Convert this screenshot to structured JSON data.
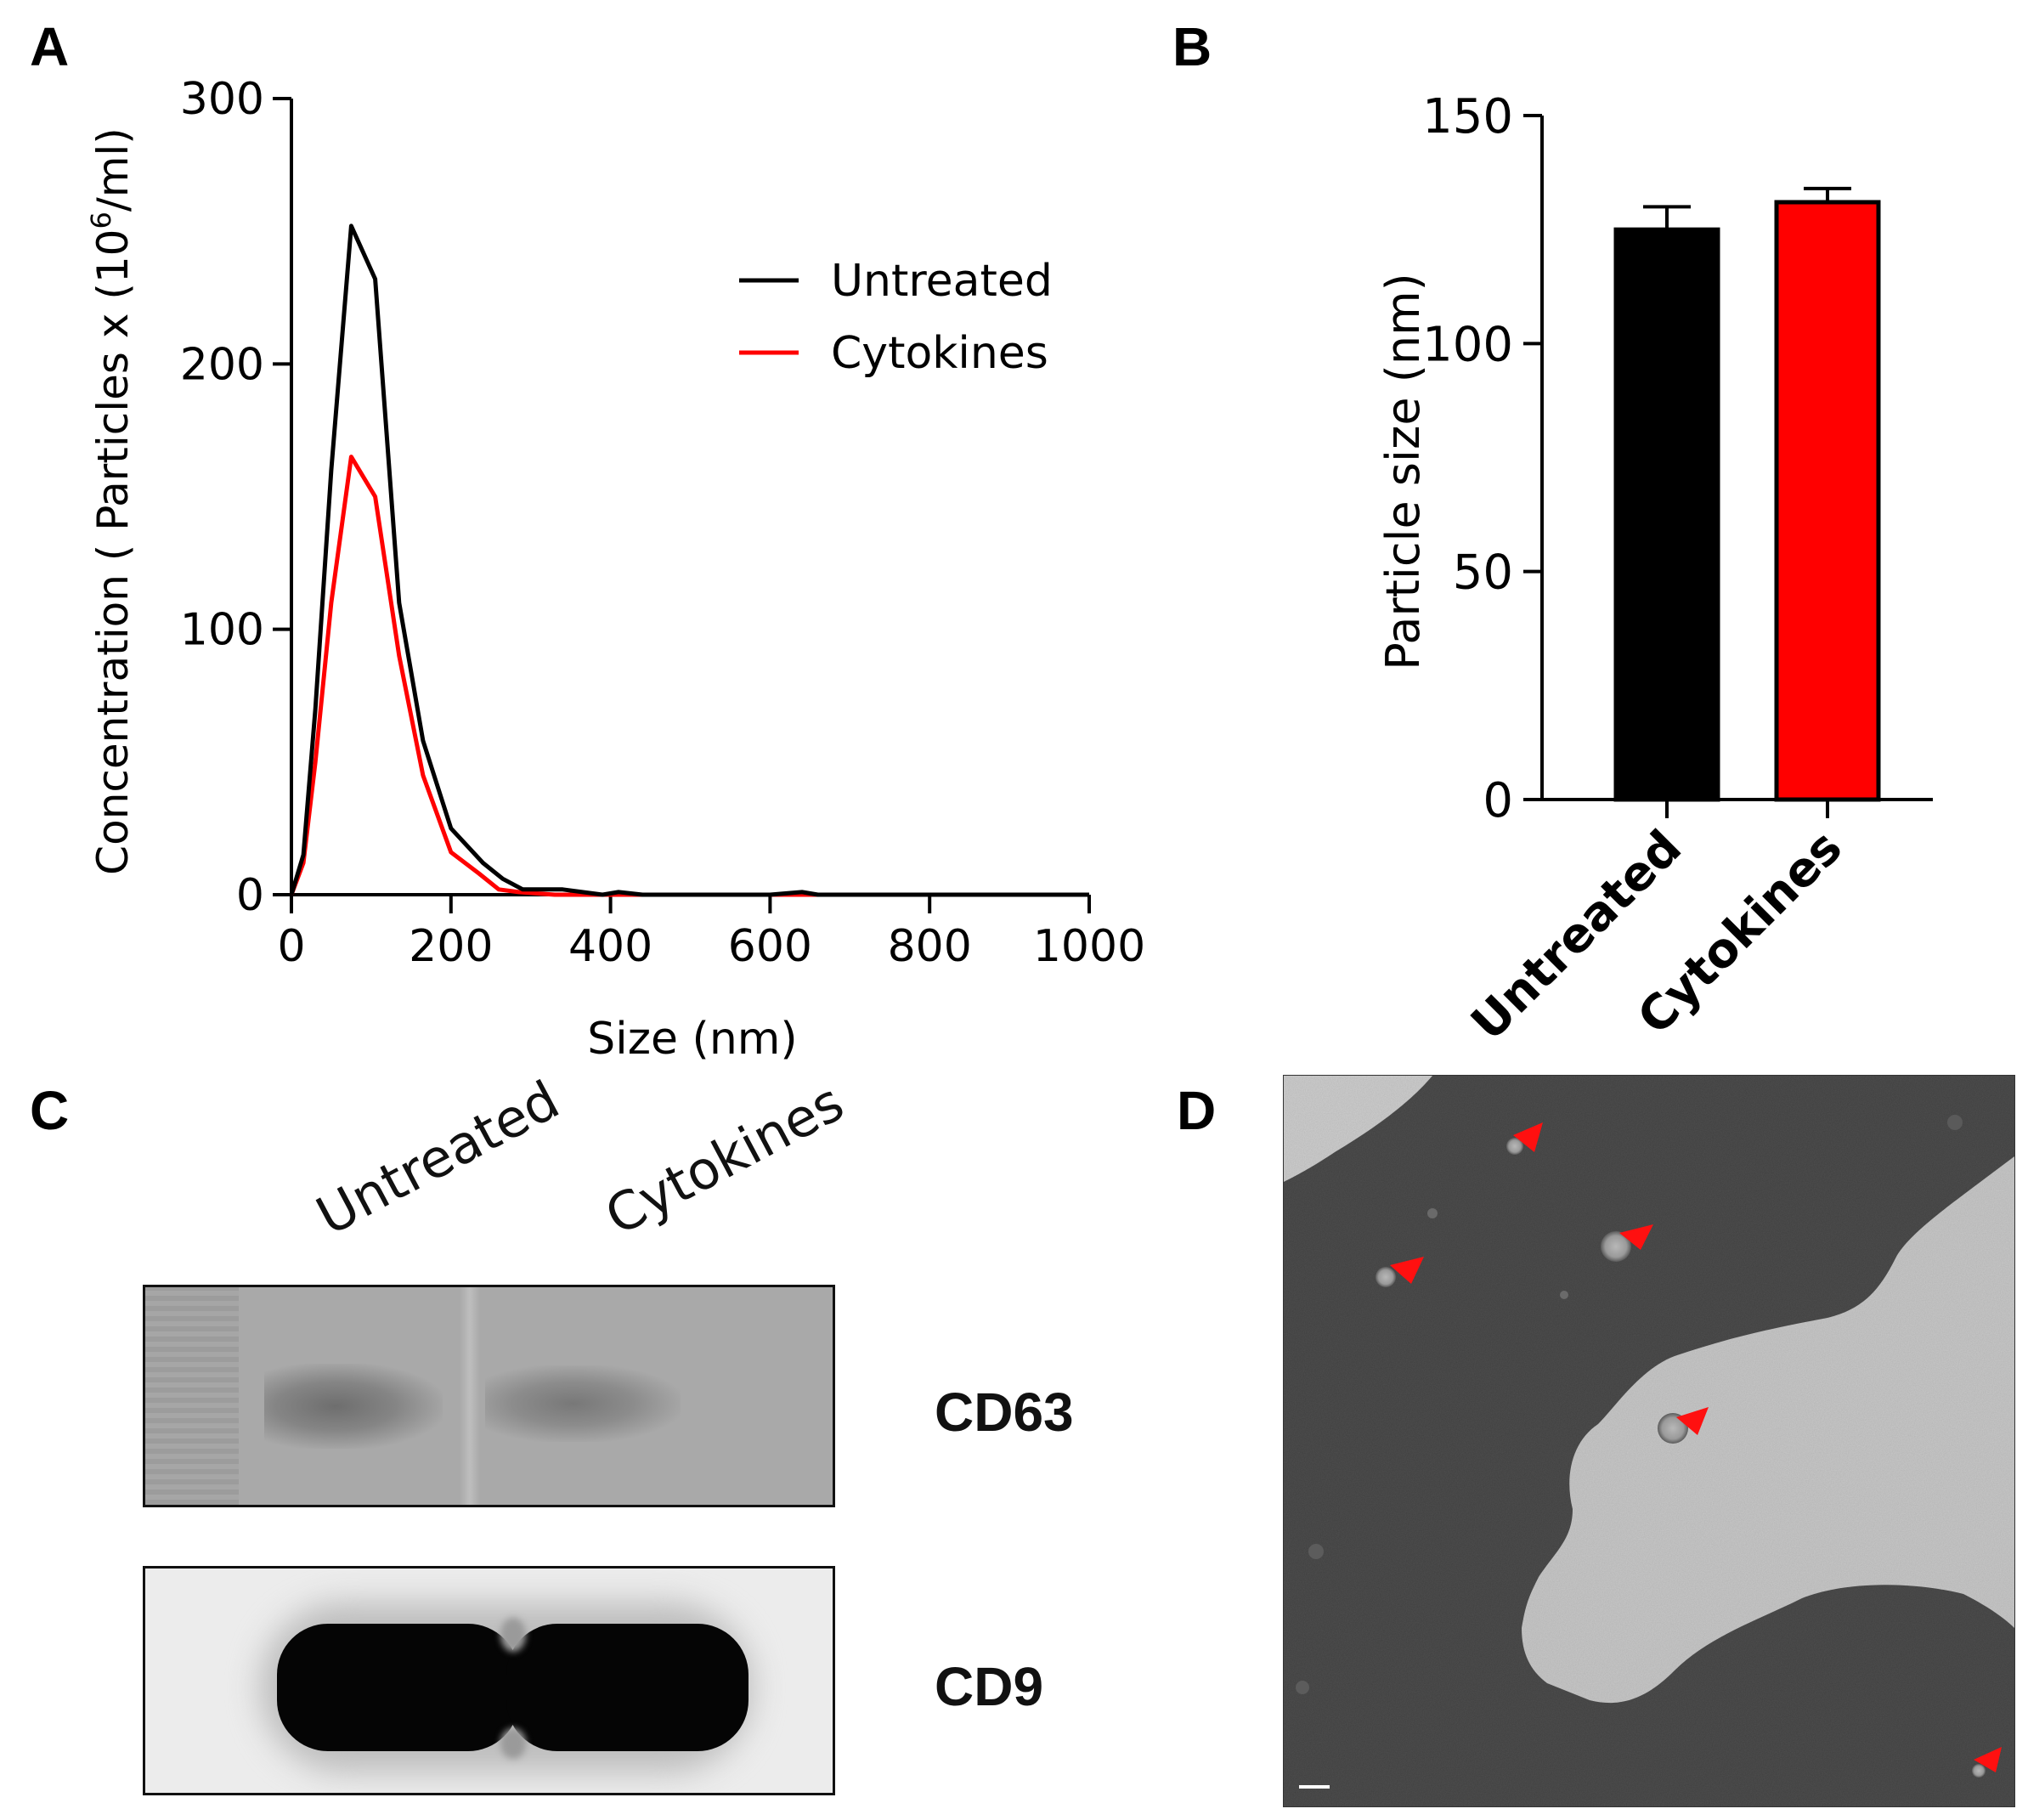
{
  "panels": {
    "a": "A",
    "b": "B",
    "c": "C",
    "d": "D"
  },
  "chart_data": [
    {
      "type": "line",
      "panel": "A",
      "xlabel": "Size (nm)",
      "ylabel_main": "Concentration ( Particles x (10",
      "ylabel_sup": "6",
      "ylabel_tail": "/ml)",
      "xlim": [
        0,
        1000
      ],
      "ylim": [
        0,
        300
      ],
      "xticks": [
        0,
        200,
        400,
        600,
        800,
        1000
      ],
      "yticks": [
        0,
        100,
        200,
        300
      ],
      "legend_position": "top-right",
      "grid": false,
      "series": [
        {
          "name": "Untreated",
          "color": "#000000",
          "x": [
            0,
            15,
            30,
            50,
            75,
            105,
            135,
            165,
            200,
            240,
            265,
            290,
            340,
            390,
            410,
            440,
            600,
            640,
            660,
            1000
          ],
          "y": [
            0,
            15,
            70,
            160,
            252,
            232,
            110,
            58,
            25,
            12,
            6,
            2,
            2,
            0,
            1,
            0,
            0,
            1,
            0,
            0
          ]
        },
        {
          "name": "Cytokines",
          "color": "#ff0000",
          "x": [
            0,
            15,
            30,
            50,
            75,
            105,
            135,
            165,
            200,
            235,
            260,
            285,
            330,
            360,
            1000
          ],
          "y": [
            0,
            12,
            50,
            110,
            165,
            150,
            90,
            45,
            16,
            8,
            2,
            1,
            0,
            0,
            0
          ]
        }
      ]
    },
    {
      "type": "bar",
      "panel": "B",
      "categories": [
        "Untreated",
        "Cytokines"
      ],
      "values": [
        125,
        131
      ],
      "errors": [
        5,
        3
      ],
      "colors": [
        "#000000",
        "#ff0000"
      ],
      "ylabel": "Particle size (nm)",
      "ylim": [
        0,
        150
      ],
      "yticks": [
        0,
        50,
        100,
        150
      ],
      "grid": false
    }
  ],
  "blot": {
    "lanes": [
      "Untreated",
      "Cytokines"
    ],
    "cd63_label": "CD63",
    "cd9_label": "CD9"
  }
}
